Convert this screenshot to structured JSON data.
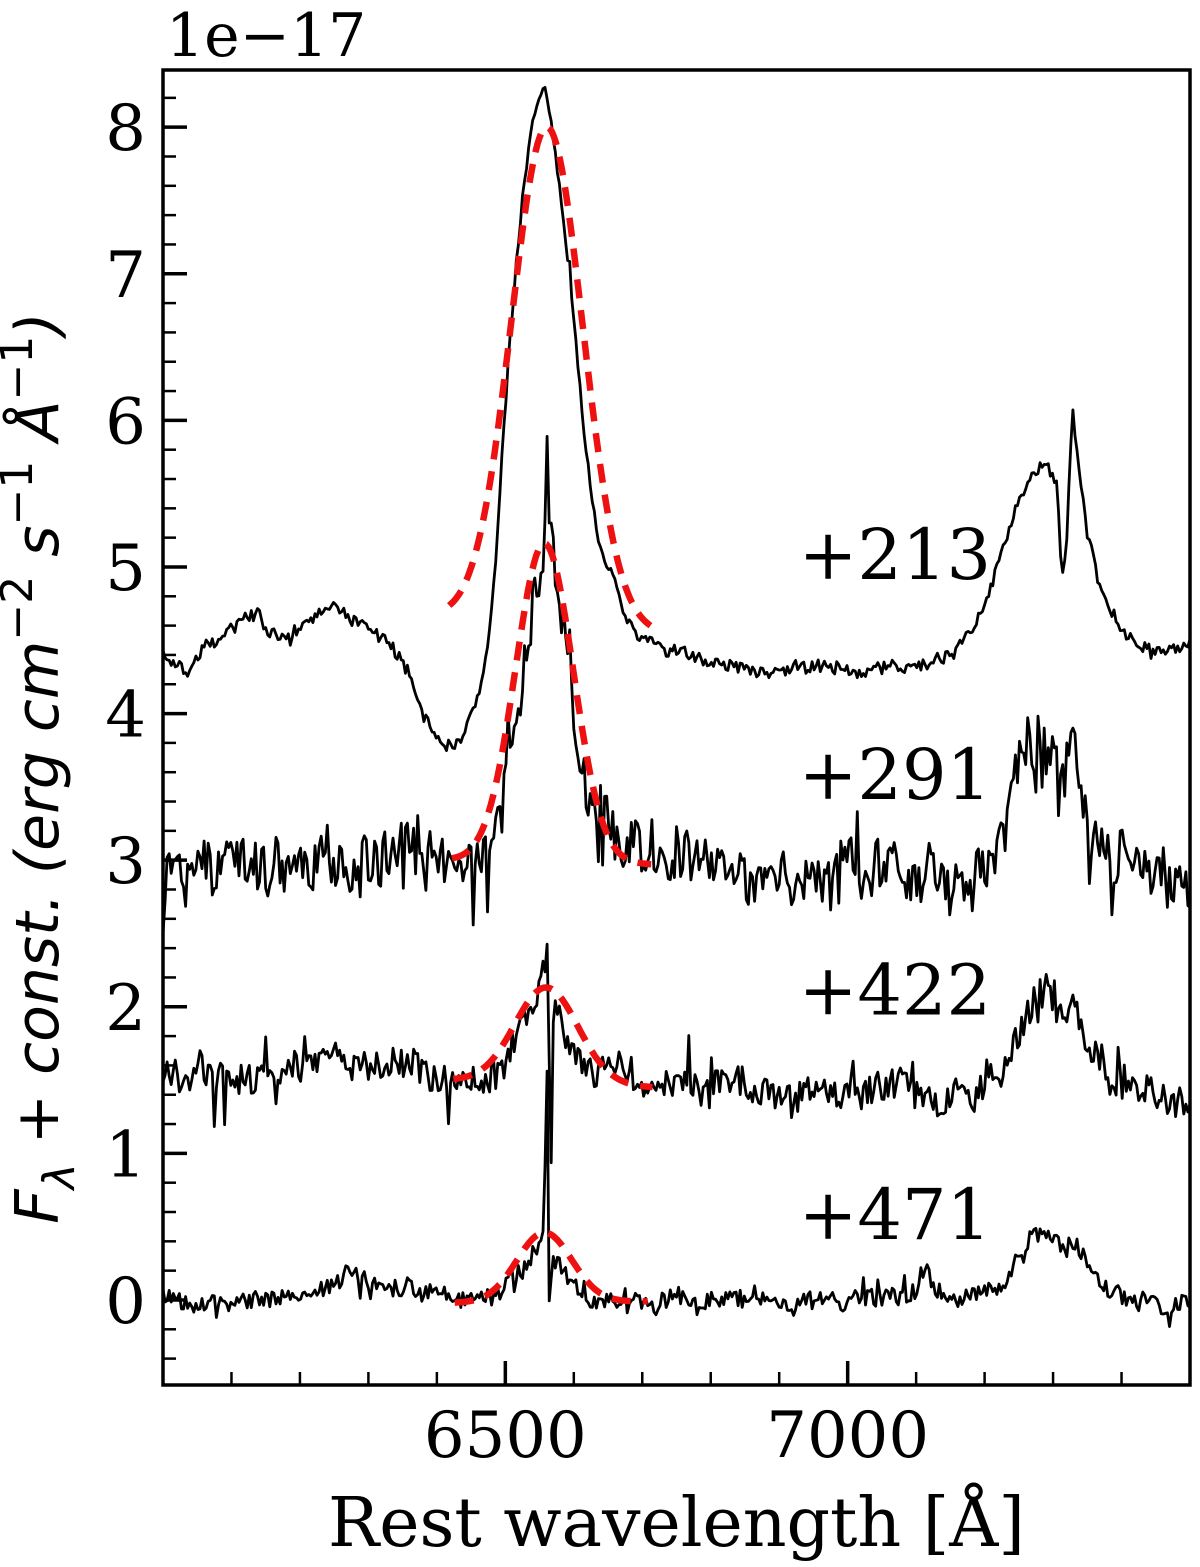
{
  "figure": {
    "offset_label": "1e−17",
    "xlabel": "Rest wavelength [Å]",
    "ylabel_segments": [
      {
        "t": "F",
        "it": true
      },
      {
        "t": "λ",
        "script": "sub",
        "it": true
      },
      {
        "t": " + const. (erg cm",
        "it": true
      },
      {
        "t": "−2",
        "script": "sup"
      },
      {
        "t": " s",
        "it": true
      },
      {
        "t": "−1",
        "script": "sup"
      },
      {
        "t": " Å",
        "it": true
      },
      {
        "t": "−1",
        "script": "sup"
      },
      {
        "t": ")",
        "it": true
      }
    ]
  },
  "chart_data": {
    "type": "line",
    "title": "",
    "xlabel": "Rest wavelength [Å]",
    "ylabel": "F_λ + const. (erg cm−2 s−1 Å−1)",
    "y_offset_label": "1e−17",
    "xlim": [
      6000,
      7500
    ],
    "ylim": [
      -0.58,
      8.39
    ],
    "xticks_major": [
      6500,
      7000
    ],
    "xtick_labels": [
      "6500",
      "7000"
    ],
    "xtick_minor_step": 100,
    "yticks_major": [
      0,
      1,
      2,
      3,
      4,
      5,
      6,
      7,
      8
    ],
    "ytick_labels": [
      "0",
      "1",
      "2",
      "3",
      "4",
      "5",
      "6",
      "7",
      "8"
    ],
    "ytick_minor_step": 0.2,
    "grid": false,
    "legend": "none",
    "colors": {
      "spectrum": "#000000",
      "fit": "#ee1111",
      "background": "#ffffff"
    },
    "series": [
      {
        "name": "spectrum-epoch-213",
        "label": "+213",
        "label_pos": [
          7069,
          5.08
        ],
        "noise": {
          "amp": 0.045,
          "spike_p": 0.03,
          "spike_amp": 0.1,
          "seed": 7
        },
        "anchors": [
          [
            6000,
            4.42
          ],
          [
            6020,
            4.35
          ],
          [
            6040,
            4.3
          ],
          [
            6060,
            4.45
          ],
          [
            6080,
            4.5
          ],
          [
            6100,
            4.6
          ],
          [
            6120,
            4.68
          ],
          [
            6140,
            4.7
          ],
          [
            6155,
            4.55
          ],
          [
            6170,
            4.48
          ],
          [
            6185,
            4.55
          ],
          [
            6200,
            4.58
          ],
          [
            6220,
            4.65
          ],
          [
            6240,
            4.72
          ],
          [
            6260,
            4.7
          ],
          [
            6280,
            4.62
          ],
          [
            6300,
            4.6
          ],
          [
            6320,
            4.5
          ],
          [
            6340,
            4.42
          ],
          [
            6360,
            4.25
          ],
          [
            6380,
            4.0
          ],
          [
            6400,
            3.85
          ],
          [
            6415,
            3.77
          ],
          [
            6430,
            3.83
          ],
          [
            6445,
            3.95
          ],
          [
            6458,
            4.1
          ],
          [
            6468,
            4.25
          ],
          [
            6477,
            4.55
          ],
          [
            6487,
            5.1
          ],
          [
            6497,
            5.9
          ],
          [
            6507,
            6.6
          ],
          [
            6517,
            7.15
          ],
          [
            6527,
            7.6
          ],
          [
            6537,
            7.95
          ],
          [
            6547,
            8.15
          ],
          [
            6557,
            8.25
          ],
          [
            6567,
            8.05
          ],
          [
            6577,
            7.65
          ],
          [
            6587,
            7.3
          ],
          [
            6597,
            6.85
          ],
          [
            6607,
            6.35
          ],
          [
            6617,
            5.85
          ],
          [
            6627,
            5.45
          ],
          [
            6637,
            5.15
          ],
          [
            6647,
            5.0
          ],
          [
            6657,
            4.92
          ],
          [
            6670,
            4.72
          ],
          [
            6685,
            4.58
          ],
          [
            6700,
            4.5
          ],
          [
            6730,
            4.44
          ],
          [
            6770,
            4.4
          ],
          [
            6810,
            4.33
          ],
          [
            6850,
            4.3
          ],
          [
            6890,
            4.28
          ],
          [
            6930,
            4.32
          ],
          [
            6970,
            4.3
          ],
          [
            7010,
            4.28
          ],
          [
            7060,
            4.32
          ],
          [
            7110,
            4.33
          ],
          [
            7150,
            4.4
          ],
          [
            7180,
            4.52
          ],
          [
            7205,
            4.78
          ],
          [
            7225,
            5.1
          ],
          [
            7245,
            5.4
          ],
          [
            7262,
            5.55
          ],
          [
            7275,
            5.62
          ],
          [
            7288,
            5.72
          ],
          [
            7298,
            5.6
          ],
          [
            7306,
            5.55
          ],
          [
            7313,
            4.88
          ],
          [
            7320,
            5.2
          ],
          [
            7328,
            6.1
          ],
          [
            7336,
            5.75
          ],
          [
            7348,
            5.3
          ],
          [
            7362,
            5.0
          ],
          [
            7378,
            4.75
          ],
          [
            7395,
            4.6
          ],
          [
            7420,
            4.48
          ],
          [
            7450,
            4.4
          ],
          [
            7475,
            4.42
          ],
          [
            7500,
            4.5
          ]
        ]
      },
      {
        "name": "spectrum-epoch-291",
        "label": "+291",
        "label_pos": [
          7069,
          3.58
        ],
        "noise": {
          "amp": 0.18,
          "spike_p": 0.1,
          "spike_amp": 0.4,
          "seed": 13
        },
        "anchors": [
          [
            6000,
            3.0
          ],
          [
            6100,
            3.0
          ],
          [
            6200,
            2.98
          ],
          [
            6300,
            3.0
          ],
          [
            6400,
            3.0
          ],
          [
            6450,
            3.02
          ],
          [
            6475,
            3.08
          ],
          [
            6495,
            3.3
          ],
          [
            6510,
            3.7
          ],
          [
            6525,
            4.2
          ],
          [
            6540,
            4.7
          ],
          [
            6550,
            5.0
          ],
          [
            6556,
            5.15
          ],
          [
            6560,
            5.9
          ],
          [
            6563,
            5.5
          ],
          [
            6568,
            5.1
          ],
          [
            6578,
            4.75
          ],
          [
            6590,
            4.3
          ],
          [
            6602,
            3.9
          ],
          [
            6615,
            3.6
          ],
          [
            6630,
            3.4
          ],
          [
            6650,
            3.2
          ],
          [
            6675,
            3.1
          ],
          [
            6710,
            3.0
          ],
          [
            6760,
            2.95
          ],
          [
            6850,
            2.92
          ],
          [
            6950,
            2.9
          ],
          [
            7050,
            2.92
          ],
          [
            7150,
            2.9
          ],
          [
            7205,
            2.95
          ],
          [
            7225,
            3.15
          ],
          [
            7245,
            3.5
          ],
          [
            7262,
            3.75
          ],
          [
            7278,
            3.85
          ],
          [
            7292,
            3.8
          ],
          [
            7305,
            3.72
          ],
          [
            7315,
            3.45
          ],
          [
            7326,
            3.9
          ],
          [
            7338,
            3.55
          ],
          [
            7352,
            3.3
          ],
          [
            7370,
            3.1
          ],
          [
            7395,
            3.0
          ],
          [
            7430,
            2.9
          ],
          [
            7470,
            2.88
          ],
          [
            7500,
            2.85
          ]
        ]
      },
      {
        "name": "spectrum-epoch-422",
        "label": "+422",
        "label_pos": [
          7069,
          2.11
        ],
        "noise": {
          "amp": 0.12,
          "spike_p": 0.06,
          "spike_amp": 0.3,
          "seed": 21
        },
        "anchors": [
          [
            6000,
            1.55
          ],
          [
            6100,
            1.55
          ],
          [
            6200,
            1.58
          ],
          [
            6260,
            1.62
          ],
          [
            6300,
            1.58
          ],
          [
            6350,
            1.6
          ],
          [
            6400,
            1.55
          ],
          [
            6440,
            1.52
          ],
          [
            6470,
            1.56
          ],
          [
            6495,
            1.65
          ],
          [
            6515,
            1.78
          ],
          [
            6532,
            1.95
          ],
          [
            6545,
            2.1
          ],
          [
            6553,
            2.2
          ],
          [
            6558,
            2.3
          ],
          [
            6561,
            2.38
          ],
          [
            6564,
            1.5
          ],
          [
            6566,
            0.38
          ],
          [
            6568,
            1.4
          ],
          [
            6571,
            1.95
          ],
          [
            6580,
            1.92
          ],
          [
            6592,
            1.8
          ],
          [
            6605,
            1.7
          ],
          [
            6622,
            1.62
          ],
          [
            6645,
            1.56
          ],
          [
            6675,
            1.52
          ],
          [
            6710,
            1.48
          ],
          [
            6760,
            1.46
          ],
          [
            6850,
            1.44
          ],
          [
            6950,
            1.42
          ],
          [
            7050,
            1.42
          ],
          [
            7130,
            1.4
          ],
          [
            7160,
            1.42
          ],
          [
            7190,
            1.44
          ],
          [
            7215,
            1.52
          ],
          [
            7235,
            1.7
          ],
          [
            7255,
            1.92
          ],
          [
            7272,
            2.05
          ],
          [
            7287,
            2.1
          ],
          [
            7300,
            2.02
          ],
          [
            7313,
            1.92
          ],
          [
            7326,
            2.05
          ],
          [
            7338,
            1.88
          ],
          [
            7352,
            1.72
          ],
          [
            7368,
            1.6
          ],
          [
            7390,
            1.5
          ],
          [
            7420,
            1.44
          ],
          [
            7460,
            1.4
          ],
          [
            7500,
            1.38
          ]
        ]
      },
      {
        "name": "spectrum-epoch-471",
        "label": "+471",
        "label_pos": [
          7069,
          0.58
        ],
        "noise": {
          "amp": 0.065,
          "spike_p": 0.05,
          "spike_amp": 0.15,
          "seed": 42
        },
        "anchors": [
          [
            6000,
            0.02
          ],
          [
            6080,
            0.0
          ],
          [
            6150,
            0.02
          ],
          [
            6220,
            0.08
          ],
          [
            6270,
            0.14
          ],
          [
            6310,
            0.14
          ],
          [
            6350,
            0.08
          ],
          [
            6400,
            0.0
          ],
          [
            6435,
            -0.03
          ],
          [
            6465,
            0.0
          ],
          [
            6495,
            0.08
          ],
          [
            6515,
            0.15
          ],
          [
            6535,
            0.25
          ],
          [
            6548,
            0.35
          ],
          [
            6555,
            0.5
          ],
          [
            6558,
            0.9
          ],
          [
            6561,
            1.6
          ],
          [
            6563,
            0.6
          ],
          [
            6565,
            -0.62
          ],
          [
            6567,
            0.2
          ],
          [
            6570,
            0.28
          ],
          [
            6580,
            0.22
          ],
          [
            6592,
            0.13
          ],
          [
            6608,
            0.06
          ],
          [
            6632,
            0.0
          ],
          [
            6670,
            -0.02
          ],
          [
            6730,
            0.0
          ],
          [
            6800,
            -0.02
          ],
          [
            6870,
            0.0
          ],
          [
            6950,
            -0.03
          ],
          [
            7030,
            0.0
          ],
          [
            7090,
            0.02
          ],
          [
            7115,
            0.28
          ],
          [
            7128,
            0.05
          ],
          [
            7170,
            0.0
          ],
          [
            7210,
            0.04
          ],
          [
            7232,
            0.14
          ],
          [
            7252,
            0.3
          ],
          [
            7272,
            0.42
          ],
          [
            7290,
            0.46
          ],
          [
            7305,
            0.4
          ],
          [
            7318,
            0.34
          ],
          [
            7330,
            0.4
          ],
          [
            7344,
            0.28
          ],
          [
            7360,
            0.15
          ],
          [
            7382,
            0.06
          ],
          [
            7415,
            0.0
          ],
          [
            7455,
            -0.02
          ],
          [
            7500,
            -0.05
          ]
        ]
      }
    ],
    "fits": [
      {
        "name": "gaussian-fit-213",
        "x_range": [
          6418,
          6712
        ],
        "center": 6561,
        "sigma": 52,
        "peak": 8.0,
        "base_left": 4.66,
        "base_right": 4.55
      },
      {
        "name": "gaussian-fit-291",
        "x_range": [
          6422,
          6714
        ],
        "center": 6557,
        "sigma": 42,
        "peak": 5.16,
        "base_left": 3.0,
        "base_right": 2.97
      },
      {
        "name": "gaussian-fit-422",
        "x_range": [
          6424,
          6716
        ],
        "center": 6560,
        "sigma": 46,
        "peak": 2.13,
        "base_left": 1.5,
        "base_right": 1.45
      },
      {
        "name": "gaussian-fit-471",
        "x_range": [
          6426,
          6708
        ],
        "center": 6557,
        "sigma": 40,
        "peak": 0.46,
        "base_left": -0.02,
        "base_right": -0.01
      }
    ]
  }
}
